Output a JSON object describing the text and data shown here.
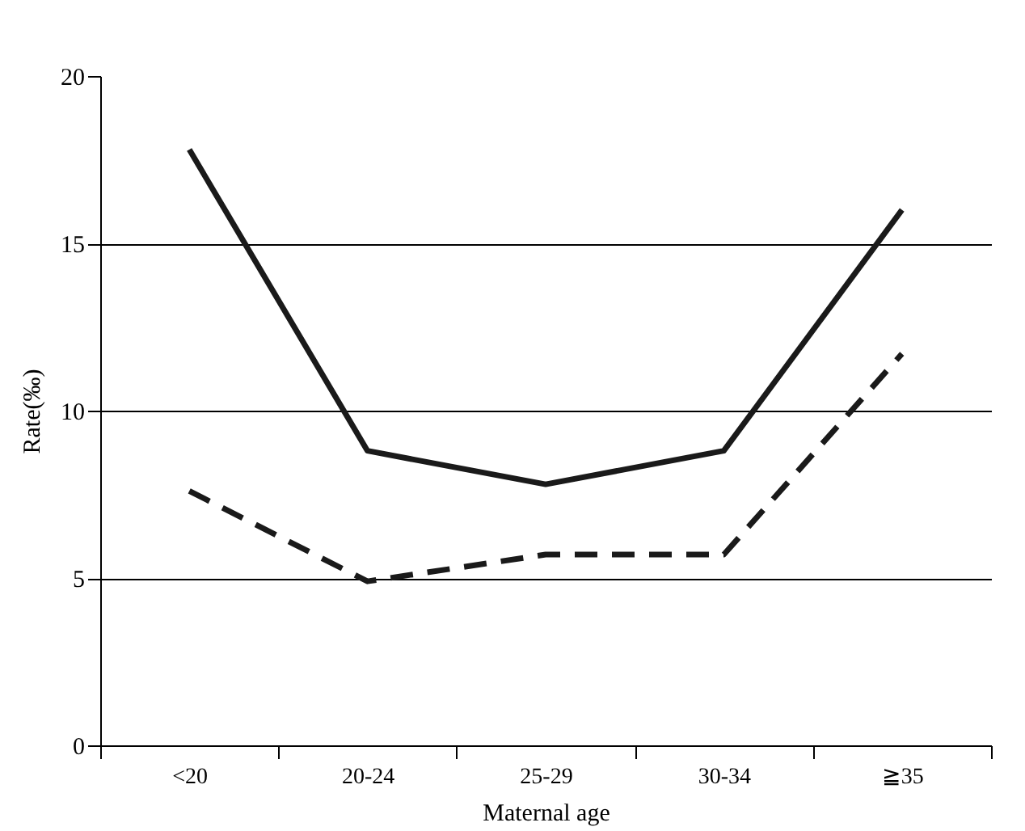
{
  "chart_data": {
    "type": "line",
    "xlabel": "Maternal age",
    "ylabel": "Rate(‰)",
    "categories": [
      "<20",
      "20-24",
      "25-29",
      "30-34",
      "≧35"
    ],
    "series": [
      {
        "color": "#1a1a1a",
        "line_style": "solid",
        "values": [
          17.8,
          8.8,
          7.8,
          8.8,
          16.0
        ]
      },
      {
        "color": "#1a1a1a",
        "line_style": "dashed",
        "values": [
          7.6,
          4.9,
          5.7,
          5.7,
          11.7
        ]
      }
    ],
    "ylim": [
      0,
      20
    ],
    "yticks": [
      0,
      5,
      10,
      15,
      20
    ],
    "grid": "y",
    "marker": "none"
  }
}
